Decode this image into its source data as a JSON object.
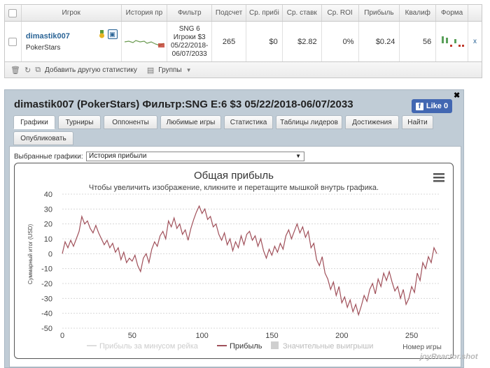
{
  "table": {
    "headers": [
      "Игрок",
      "История пр",
      "Фильтр",
      "Подсчет",
      "Ср. прибі",
      "Ср. ставк",
      "Ср. ROI",
      "Прибыль",
      "Квалиф",
      "Форма"
    ],
    "row": {
      "player": "dimastik007",
      "site": "PokerStars",
      "filter_lines": [
        "SNG 6",
        "Игроки $3",
        "05/22/2018-",
        "06/07/2033"
      ],
      "count": "265",
      "avg_profit": "$0",
      "avg_stake": "$2.82",
      "avg_roi": "0%",
      "profit": "$0.24",
      "qualif": "56",
      "extra": "x"
    },
    "footer": {
      "add_stats": "Добавить другую статистику",
      "groups": "Группы"
    }
  },
  "panel": {
    "title": "dimastik007 (PokerStars) Фильтр:SNG E:6 $3 05/22/2018-06/07/2033",
    "like": "Like 0",
    "tabs": [
      "Графики",
      "Турниры",
      "Оппоненты",
      "Любимые игры",
      "Статистика",
      "Таблицы лидеров",
      "Достижения",
      "Найти",
      "Опубликовать"
    ],
    "active_tab": "Графики",
    "select_label": "Выбранные графики:",
    "select_value": "История прибыли"
  },
  "chart_data": {
    "type": "line",
    "title": "Общая прибыль",
    "subtitle": "Чтобы увеличить изображение, кликните и перетащите мышкой внутрь графика.",
    "xlabel": "Номер игры",
    "ylabel": "Суммарный итог (USD)",
    "xlim": [
      0,
      270
    ],
    "ylim": [
      -50,
      40
    ],
    "x_ticks": [
      0,
      50,
      100,
      150,
      200,
      250
    ],
    "y_ticks": [
      40,
      30,
      20,
      10,
      0,
      -10,
      -20,
      -30,
      -40,
      -50
    ],
    "grid": true,
    "legend_position": "bottom",
    "series": [
      {
        "name": "Прибыль за минусом рейка",
        "color": "#dddddd",
        "values": []
      },
      {
        "name": "Прибыль",
        "color": "#a0505a",
        "x": [
          0,
          2,
          4,
          6,
          8,
          10,
          12,
          14,
          16,
          18,
          20,
          22,
          24,
          26,
          28,
          30,
          32,
          34,
          36,
          38,
          40,
          42,
          44,
          46,
          48,
          50,
          52,
          54,
          56,
          58,
          60,
          62,
          64,
          66,
          68,
          70,
          72,
          74,
          76,
          78,
          80,
          82,
          84,
          86,
          88,
          90,
          92,
          94,
          96,
          98,
          100,
          102,
          104,
          106,
          108,
          110,
          112,
          114,
          116,
          118,
          120,
          122,
          124,
          126,
          128,
          130,
          132,
          134,
          136,
          138,
          140,
          142,
          144,
          146,
          148,
          150,
          152,
          154,
          156,
          158,
          160,
          162,
          164,
          166,
          168,
          170,
          172,
          174,
          176,
          178,
          180,
          182,
          184,
          186,
          188,
          190,
          192,
          194,
          196,
          198,
          200,
          202,
          204,
          206,
          208,
          210,
          212,
          214,
          216,
          218,
          220,
          222,
          224,
          226,
          228,
          230,
          232,
          234,
          236,
          238,
          240,
          242,
          244,
          246,
          248,
          250,
          252,
          254,
          256,
          258,
          260,
          262,
          264,
          266,
          268
        ],
        "values": [
          0,
          8,
          4,
          9,
          5,
          10,
          15,
          25,
          20,
          22,
          17,
          14,
          19,
          14,
          10,
          6,
          9,
          4,
          7,
          1,
          4,
          -4,
          1,
          -6,
          -3,
          -5,
          -1,
          -8,
          -12,
          -3,
          0,
          -6,
          3,
          8,
          5,
          12,
          15,
          10,
          22,
          18,
          24,
          17,
          20,
          13,
          16,
          9,
          17,
          23,
          28,
          32,
          27,
          30,
          23,
          25,
          18,
          20,
          13,
          9,
          14,
          6,
          10,
          2,
          8,
          4,
          12,
          6,
          13,
          15,
          9,
          12,
          5,
          10,
          2,
          -3,
          3,
          -1,
          5,
          1,
          7,
          3,
          12,
          16,
          10,
          15,
          20,
          14,
          18,
          11,
          15,
          4,
          7,
          -4,
          -8,
          -2,
          -13,
          -17,
          -24,
          -19,
          -28,
          -22,
          -33,
          -29,
          -36,
          -31,
          -39,
          -34,
          -41,
          -35,
          -28,
          -32,
          -24,
          -20,
          -27,
          -17,
          -22,
          -13,
          -18,
          -12,
          -19,
          -25,
          -22,
          -30,
          -24,
          -34,
          -30,
          -22,
          -26,
          -13,
          -18,
          -6,
          -10,
          -2,
          -6,
          4,
          0
        ]
      },
      {
        "name": "Значительные выигрыши",
        "color": "#cfcfcf",
        "values": []
      }
    ]
  },
  "watermark": "joyReactor.shot"
}
